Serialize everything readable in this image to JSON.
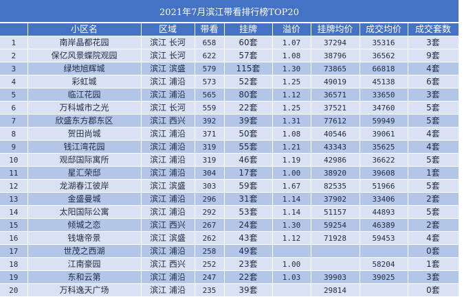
{
  "title": "2021年7月滨江带看排行榜TOP20",
  "columns": [
    "",
    "小区名",
    "区域",
    "带看",
    "挂牌",
    "溢价",
    "挂牌均价",
    "成交均价",
    "成交套数"
  ],
  "rows": [
    [
      "1",
      "南岸晶都花园",
      "滨江  长河",
      "658",
      "60套",
      "1.07",
      "37294",
      "35316",
      "3套"
    ],
    [
      "2",
      "保亿风景蝶院观园",
      "滨江  长河",
      "622",
      "57套",
      "1.08",
      "38796",
      "36562",
      "9套"
    ],
    [
      "3",
      "绿地旭辉城",
      "滨江  滨盛",
      "579",
      "115套",
      "1.30",
      "73865",
      "66818",
      "4套"
    ],
    [
      "4",
      "彩虹城",
      "滨江  浦沿",
      "573",
      "52套",
      "1.25",
      "49019",
      "45138",
      "6套"
    ],
    [
      "5",
      "临江花园",
      "滨江  浦沿",
      "565",
      "80套",
      "1.12",
      "36571",
      "33650",
      "3套"
    ],
    [
      "6",
      "万科城市之光",
      "滨江  长河",
      "559",
      "22套",
      "1.25",
      "37521",
      "34760",
      "5套"
    ],
    [
      "7",
      "欣盛东方郡东区",
      "滨江  西兴",
      "392",
      "39套",
      "1.31",
      "77612",
      "59949",
      "5套"
    ],
    [
      "8",
      "贺田尚城",
      "滨江  浦沿",
      "371",
      "50套",
      "1.08",
      "40546",
      "39061",
      "4套"
    ],
    [
      "9",
      "钱江湾花园",
      "滨江  浦沿",
      "319",
      "55套",
      "1.21",
      "43343",
      "35625",
      "4套"
    ],
    [
      "10",
      "观邸国际寓所",
      "滨江  浦沿",
      "319",
      "46套",
      "1.19",
      "42986",
      "36622",
      "5套"
    ],
    [
      "11",
      "星汇荣邸",
      "滨江  浦沿",
      "304",
      "17套",
      "1.00",
      "38920",
      "39608",
      "1套"
    ],
    [
      "12",
      "龙湖春江彼岸",
      "滨江  滨盛",
      "303",
      "59套",
      "1.67",
      "82535",
      "51966",
      "5套"
    ],
    [
      "13",
      "金盛曼城",
      "滨江  浦沿",
      "296",
      "31套",
      "1.14",
      "37902",
      "33406",
      "2套"
    ],
    [
      "14",
      "太阳国际公寓",
      "滨江  浦沿",
      "292",
      "53套",
      "1.14",
      "51157",
      "44893",
      "5套"
    ],
    [
      "15",
      "倾城之恋",
      "滨江  西兴",
      "267",
      "24套",
      "1.30",
      "59254",
      "46389",
      "2套"
    ],
    [
      "16",
      "钱塘帝景",
      "滨江  滨盛",
      "262",
      "43套",
      "1.12",
      "71928",
      "59453",
      "4套"
    ],
    [
      "17",
      "世茂之西湖",
      "滨江  浦沿",
      "258",
      "49套",
      "",
      "",
      "",
      "0套"
    ],
    [
      "18",
      "江南豪园",
      "滨江  西兴",
      "252",
      "23套",
      "1.00",
      "",
      "58204",
      "1套"
    ],
    [
      "19",
      "东和云第",
      "滨江  浦沿",
      "247",
      "22套",
      "1.03",
      "39903",
      "39025",
      "3套"
    ],
    [
      "20",
      "万科逸天广场",
      "滨江  浦沿",
      "235",
      "39套",
      "",
      "29814",
      "",
      "0套"
    ]
  ]
}
